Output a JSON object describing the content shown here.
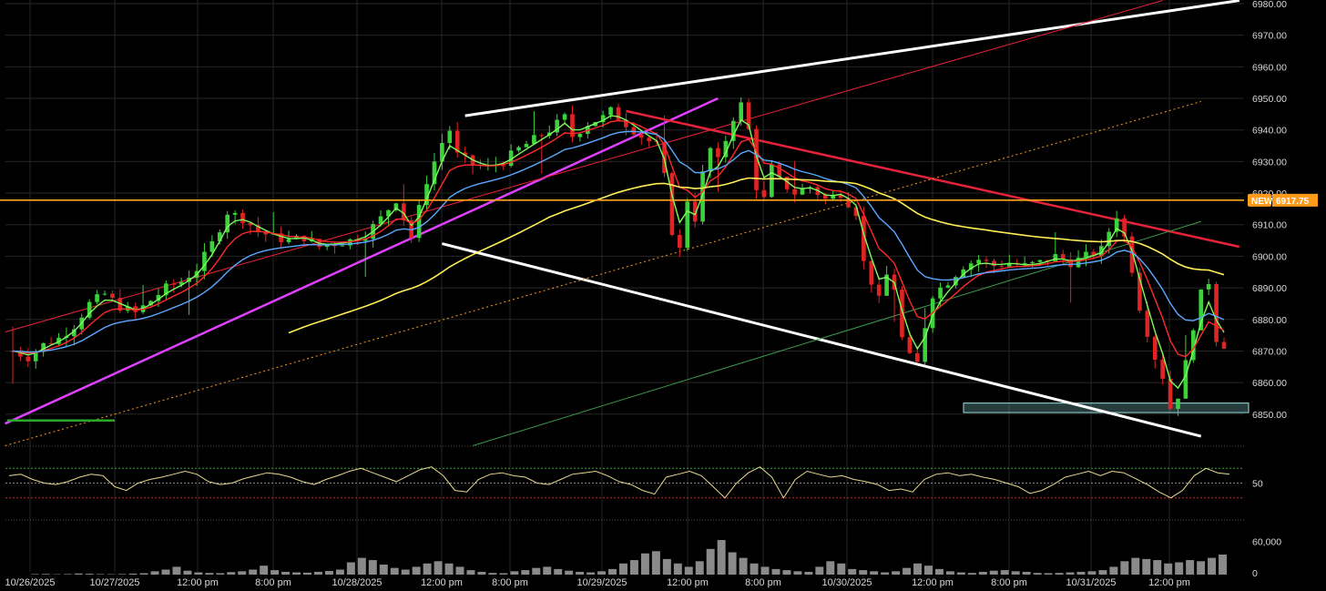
{
  "chart_data": {
    "type": "candlestick",
    "symbol_price": {
      "yaxis_ticks": [
        "6980.00",
        "6970.00",
        "6960.00",
        "6950.00",
        "6940.00",
        "6930.00",
        "6920.00",
        "6910.00",
        "6900.00",
        "6890.00",
        "6880.00",
        "6870.00",
        "6860.00",
        "6850.00"
      ],
      "ylim": [
        6841,
        6980
      ],
      "current_price": 6917.75,
      "current_price_label": "6917.75",
      "new_badge": "NEW",
      "support_zone": [
        6850.5,
        6853.5
      ],
      "close_path": [
        [
          0,
          6870
        ],
        [
          2,
          6868
        ],
        [
          4,
          6872
        ],
        [
          6,
          6874
        ],
        [
          8,
          6878
        ],
        [
          10,
          6885
        ],
        [
          12,
          6888
        ],
        [
          14,
          6884
        ],
        [
          16,
          6882
        ],
        [
          18,
          6886
        ],
        [
          20,
          6890
        ],
        [
          22,
          6892
        ],
        [
          24,
          6896
        ],
        [
          26,
          6904
        ],
        [
          28,
          6914
        ],
        [
          30,
          6912
        ],
        [
          32,
          6908
        ],
        [
          34,
          6906
        ],
        [
          36,
          6905
        ],
        [
          38,
          6906
        ],
        [
          40,
          6903
        ],
        [
          42,
          6904
        ],
        [
          44,
          6905
        ],
        [
          46,
          6907
        ],
        [
          48,
          6912
        ],
        [
          50,
          6918
        ],
        [
          51,
          6912
        ],
        [
          52,
          6906
        ],
        [
          54,
          6924
        ],
        [
          56,
          6936
        ],
        [
          57,
          6940
        ],
        [
          58,
          6932
        ],
        [
          60,
          6929
        ],
        [
          62,
          6928
        ],
        [
          64,
          6930
        ],
        [
          66,
          6934
        ],
        [
          68,
          6937
        ],
        [
          70,
          6940
        ],
        [
          72,
          6944
        ],
        [
          73,
          6938
        ],
        [
          75,
          6942
        ],
        [
          77,
          6944
        ],
        [
          78,
          6946
        ],
        [
          80,
          6942
        ],
        [
          82,
          6938
        ],
        [
          84,
          6935
        ],
        [
          85,
          6925
        ],
        [
          86,
          6908
        ],
        [
          87,
          6902
        ],
        [
          88,
          6918
        ],
        [
          89,
          6912
        ],
        [
          90,
          6926
        ],
        [
          91,
          6934
        ],
        [
          92,
          6930
        ],
        [
          94,
          6944
        ],
        [
          95,
          6948
        ],
        [
          96,
          6940
        ],
        [
          97,
          6922
        ],
        [
          98,
          6918
        ],
        [
          99,
          6928
        ],
        [
          100,
          6924
        ],
        [
          102,
          6920
        ],
        [
          104,
          6922
        ],
        [
          106,
          6918
        ],
        [
          108,
          6920
        ],
        [
          110,
          6914
        ],
        [
          111,
          6898
        ],
        [
          112,
          6892
        ],
        [
          113,
          6886
        ],
        [
          114,
          6894
        ],
        [
          115,
          6890
        ],
        [
          116,
          6874
        ],
        [
          117,
          6868
        ],
        [
          118,
          6866
        ],
        [
          119,
          6878
        ],
        [
          120,
          6888
        ],
        [
          122,
          6892
        ],
        [
          124,
          6897
        ],
        [
          126,
          6899
        ],
        [
          128,
          6897
        ],
        [
          130,
          6898
        ],
        [
          132,
          6897
        ],
        [
          134,
          6898
        ],
        [
          136,
          6900
        ],
        [
          138,
          6898
        ],
        [
          140,
          6900
        ],
        [
          142,
          6902
        ],
        [
          143,
          6908
        ],
        [
          144,
          6913
        ],
        [
          145,
          6906
        ],
        [
          146,
          6896
        ],
        [
          147,
          6884
        ],
        [
          148,
          6876
        ],
        [
          149,
          6868
        ],
        [
          150,
          6862
        ],
        [
          151,
          6852
        ],
        [
          152,
          6856
        ],
        [
          153,
          6866
        ],
        [
          154,
          6878
        ],
        [
          155,
          6888
        ],
        [
          156,
          6892
        ],
        [
          157,
          6874
        ],
        [
          158,
          6872
        ]
      ]
    },
    "indicator": {
      "label": "50",
      "range": [
        0,
        100
      ],
      "ob": 70,
      "os": 30,
      "mid": 50,
      "series": [
        60,
        62,
        55,
        50,
        48,
        52,
        58,
        62,
        60,
        45,
        40,
        50,
        55,
        58,
        62,
        66,
        62,
        52,
        48,
        50,
        56,
        60,
        64,
        62,
        58,
        52,
        48,
        55,
        60,
        66,
        70,
        64,
        58,
        52,
        60,
        68,
        72,
        60,
        40,
        38,
        55,
        62,
        64,
        60,
        58,
        50,
        48,
        55,
        62,
        64,
        66,
        60,
        52,
        48,
        40,
        35,
        58,
        62,
        66,
        60,
        45,
        30,
        50,
        64,
        72,
        58,
        30,
        55,
        66,
        62,
        58,
        60,
        55,
        52,
        48,
        40,
        42,
        38,
        55,
        62,
        64,
        60,
        62,
        58,
        55,
        50,
        45,
        36,
        40,
        48,
        58,
        62,
        66,
        60,
        66,
        64,
        56,
        48,
        38,
        30,
        40,
        60,
        70,
        64,
        62
      ]
    },
    "volume": {
      "ytick_labels": [
        "60,000",
        "0"
      ],
      "ylim": [
        0,
        80000
      ],
      "values": [
        0,
        0,
        800,
        1200,
        600,
        1000,
        2000,
        1500,
        900,
        700,
        1000,
        1800,
        2500,
        6000,
        9000,
        14000,
        7000,
        4000,
        3000,
        2500,
        4500,
        6000,
        9000,
        16000,
        8000,
        5000,
        4000,
        3500,
        5000,
        6500,
        9000,
        22000,
        30000,
        26000,
        18000,
        12000,
        9000,
        14000,
        20000,
        24000,
        20000,
        14000,
        8000,
        5000,
        3000,
        2500,
        6000,
        8000,
        12000,
        14000,
        10000,
        7000,
        5000,
        4000,
        6000,
        10000,
        20000,
        26000,
        38000,
        42000,
        28000,
        20000,
        14000,
        24000,
        46000,
        62000,
        40000,
        30000,
        20000,
        14000,
        10000,
        8000,
        6000,
        5000,
        14000,
        24000,
        20000,
        10000,
        8000,
        6000,
        4000,
        6000,
        12000,
        20000,
        16000,
        10000,
        6000,
        4000,
        3000,
        5000,
        7000,
        8000,
        6000,
        5000,
        3000,
        2500,
        3000,
        4000,
        5000,
        6000,
        8000,
        14000,
        24000,
        30000,
        28000,
        26000,
        20000,
        22000,
        26000,
        24000,
        30000,
        36000
      ]
    },
    "xaxis_ticks": [
      "10/26/2025",
      "10/27/2025",
      "12:00 pm",
      "8:00 pm",
      "10/28/2025",
      "12:00 pm",
      "8:00 pm",
      "10/29/2025",
      "12:00 pm",
      "8:00 pm",
      "10/30/2025",
      "12:00 pm",
      "8:00 pm",
      "10/31/2025",
      "12:00 pm"
    ],
    "grid": true,
    "moving_averages": [
      {
        "color": "#7CFC5A"
      },
      {
        "color": "#ff2a2a"
      },
      {
        "color": "#5aa8ff"
      },
      {
        "color": "#ffee55"
      }
    ],
    "trendlines": {
      "white": "#ffffff",
      "magenta": "#e040ff",
      "red": "#e8223a",
      "orange": "#ff9a1a",
      "green": "#3a9a4a",
      "cyan_zone": "#9fe0e0"
    }
  }
}
